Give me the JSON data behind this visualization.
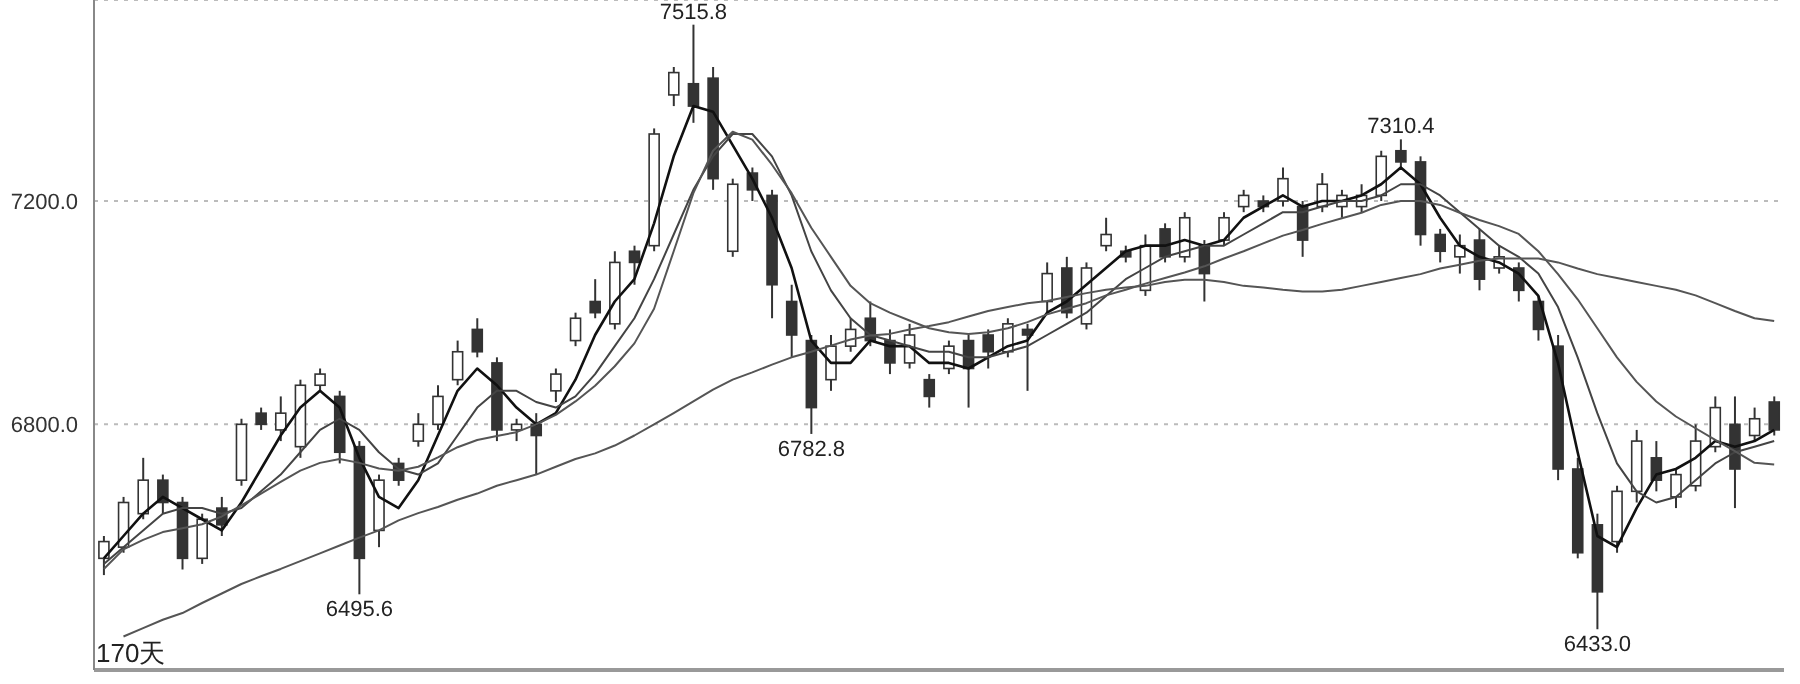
{
  "chart_data": {
    "type": "candlestick",
    "color": "#333333",
    "grid": "y",
    "tick_labels": "y",
    "ylim": [
      6360,
      7560
    ],
    "yticks": [
      {
        "value": 6800,
        "label": "6800.0"
      },
      {
        "value": 7200,
        "label": "7200.0"
      }
    ],
    "categories": [
      null,
      null,
      null,
      null,
      null,
      null,
      null,
      null,
      null,
      null,
      null,
      null,
      null,
      null,
      null,
      null,
      null,
      null,
      null,
      null,
      null,
      null,
      null,
      null,
      null,
      null,
      null,
      null,
      null,
      null,
      null,
      null,
      null,
      null,
      null,
      null,
      null,
      null,
      null,
      null,
      null,
      null,
      null,
      null,
      null,
      null,
      null,
      null,
      null,
      null,
      null,
      null,
      null,
      null,
      null,
      null,
      null,
      null,
      null,
      null,
      null,
      null,
      null,
      null,
      null,
      null,
      null,
      null,
      null,
      null,
      null,
      null,
      null,
      null,
      null,
      null,
      null,
      null,
      null,
      null,
      null,
      null,
      null,
      null,
      null,
      null
    ],
    "ohlc": [
      [
        6560,
        6600,
        6530,
        6590
      ],
      [
        6580,
        6670,
        6570,
        6660
      ],
      [
        6640,
        6740,
        6630,
        6700
      ],
      [
        6700,
        6710,
        6640,
        6660
      ],
      [
        6660,
        6670,
        6540,
        6560
      ],
      [
        6560,
        6640,
        6550,
        6630
      ],
      [
        6650,
        6670,
        6600,
        6620
      ],
      [
        6700,
        6810,
        6690,
        6800
      ],
      [
        6820,
        6830,
        6790,
        6800
      ],
      [
        6790,
        6850,
        6770,
        6820
      ],
      [
        6760,
        6880,
        6740,
        6870
      ],
      [
        6870,
        6900,
        6860,
        6890
      ],
      [
        6850,
        6860,
        6730,
        6750
      ],
      [
        6760,
        6770,
        6495.6,
        6560
      ],
      [
        6610,
        6710,
        6580,
        6700
      ],
      [
        6730,
        6740,
        6690,
        6700
      ],
      [
        6770,
        6820,
        6760,
        6800
      ],
      [
        6800,
        6870,
        6790,
        6850
      ],
      [
        6880,
        6950,
        6870,
        6930
      ],
      [
        6970,
        6990,
        6920,
        6930
      ],
      [
        6910,
        6920,
        6770,
        6790
      ],
      [
        6790,
        6810,
        6770,
        6800
      ],
      [
        6800,
        6820,
        6710,
        6780
      ],
      [
        6860,
        6900,
        6840,
        6890
      ],
      [
        6950,
        7000,
        6940,
        6990
      ],
      [
        7020,
        7060,
        6990,
        7000
      ],
      [
        6980,
        7110,
        6970,
        7090
      ],
      [
        7110,
        7120,
        7050,
        7090
      ],
      [
        7120,
        7330,
        7110,
        7320
      ],
      [
        7390,
        7440,
        7370,
        7430
      ],
      [
        7410,
        7515.8,
        7340,
        7370
      ],
      [
        7420,
        7440,
        7220,
        7240
      ],
      [
        7110,
        7240,
        7100,
        7230
      ],
      [
        7250,
        7260,
        7200,
        7220
      ],
      [
        7210,
        7220,
        6990,
        7050
      ],
      [
        7020,
        7050,
        6920,
        6960
      ],
      [
        6950,
        6960,
        6782.8,
        6830
      ],
      [
        6880,
        6960,
        6860,
        6940
      ],
      [
        6940,
        6990,
        6930,
        6970
      ],
      [
        6990,
        7020,
        6940,
        6950
      ],
      [
        6950,
        6970,
        6890,
        6910
      ],
      [
        6910,
        6980,
        6900,
        6960
      ],
      [
        6880,
        6890,
        6830,
        6850
      ],
      [
        6900,
        6950,
        6890,
        6940
      ],
      [
        6950,
        6960,
        6830,
        6900
      ],
      [
        6960,
        6970,
        6900,
        6930
      ],
      [
        6930,
        6990,
        6920,
        6980
      ],
      [
        6970,
        6980,
        6860,
        6960
      ],
      [
        7020,
        7090,
        7000,
        7070
      ],
      [
        7080,
        7100,
        6990,
        7000
      ],
      [
        6980,
        7090,
        6970,
        7080
      ],
      [
        7120,
        7170,
        7110,
        7140
      ],
      [
        7110,
        7120,
        7090,
        7100
      ],
      [
        7040,
        7140,
        7030,
        7120
      ],
      [
        7150,
        7160,
        7090,
        7100
      ],
      [
        7100,
        7180,
        7090,
        7170
      ],
      [
        7120,
        7130,
        7020,
        7070
      ],
      [
        7130,
        7180,
        7120,
        7170
      ],
      [
        7190,
        7220,
        7180,
        7210
      ],
      [
        7200,
        7210,
        7180,
        7190
      ],
      [
        7200,
        7260,
        7190,
        7240
      ],
      [
        7190,
        7200,
        7100,
        7130
      ],
      [
        7190,
        7250,
        7180,
        7230
      ],
      [
        7190,
        7220,
        7170,
        7210
      ],
      [
        7190,
        7230,
        7180,
        7210
      ],
      [
        7210,
        7290,
        7200,
        7280
      ],
      [
        7290,
        7310.4,
        7260,
        7270
      ],
      [
        7270,
        7280,
        7120,
        7140
      ],
      [
        7140,
        7150,
        7090,
        7110
      ],
      [
        7100,
        7140,
        7070,
        7120
      ],
      [
        7130,
        7150,
        7040,
        7060
      ],
      [
        7080,
        7120,
        7070,
        7100
      ],
      [
        7080,
        7090,
        7020,
        7040
      ],
      [
        7020,
        7030,
        6950,
        6970
      ],
      [
        6940,
        6960,
        6700,
        6720
      ],
      [
        6720,
        6740,
        6560,
        6570
      ],
      [
        6620,
        6640,
        6433.0,
        6500
      ],
      [
        6590,
        6690,
        6570,
        6680
      ],
      [
        6680,
        6790,
        6660,
        6770
      ],
      [
        6740,
        6770,
        6680,
        6700
      ],
      [
        6670,
        6720,
        6650,
        6710
      ],
      [
        6690,
        6800,
        6680,
        6770
      ],
      [
        6760,
        6850,
        6750,
        6830
      ],
      [
        6800,
        6850,
        6650,
        6720
      ],
      [
        6780,
        6830,
        6770,
        6810
      ],
      [
        6840,
        6850,
        6780,
        6790
      ]
    ],
    "series": [
      {
        "type": "line",
        "color": "#111111",
        "values": [
          6560,
          6600,
          6640,
          6670,
          6650,
          6630,
          6610,
          6660,
          6720,
          6780,
          6830,
          6860,
          6830,
          6740,
          6670,
          6650,
          6700,
          6780,
          6860,
          6900,
          6870,
          6830,
          6800,
          6820,
          6880,
          6960,
          7020,
          7060,
          7160,
          7280,
          7370,
          7360,
          7300,
          7240,
          7170,
          7080,
          6950,
          6910,
          6910,
          6950,
          6940,
          6940,
          6910,
          6910,
          6900,
          6920,
          6940,
          6950,
          7000,
          7020,
          7050,
          7080,
          7110,
          7120,
          7120,
          7130,
          7120,
          7130,
          7170,
          7190,
          7210,
          7190,
          7200,
          7200,
          7210,
          7230,
          7260,
          7230,
          7170,
          7120,
          7100,
          7090,
          7070,
          7030,
          6910,
          6750,
          6600,
          6580,
          6650,
          6710,
          6720,
          6740,
          6770,
          6760,
          6770,
          6790
        ]
      },
      {
        "type": "line",
        "color": "#444444",
        "values": [
          6550,
          6580,
          6610,
          6640,
          6650,
          6650,
          6640,
          6650,
          6680,
          6710,
          6750,
          6790,
          6810,
          6790,
          6750,
          6720,
          6710,
          6730,
          6780,
          6830,
          6860,
          6860,
          6840,
          6830,
          6850,
          6890,
          6940,
          6990,
          7060,
          7140,
          7220,
          7280,
          7320,
          7320,
          7280,
          7210,
          7110,
          7040,
          6990,
          6960,
          6950,
          6940,
          6930,
          6930,
          6920,
          6920,
          6930,
          6940,
          6960,
          6980,
          7000,
          7030,
          7060,
          7080,
          7100,
          7110,
          7120,
          7120,
          7140,
          7160,
          7180,
          7180,
          7190,
          7200,
          7200,
          7210,
          7230,
          7230,
          7210,
          7180,
          7150,
          7120,
          7100,
          7070,
          7010,
          6920,
          6820,
          6730,
          6680,
          6660,
          6670,
          6700,
          6730,
          6750,
          6760,
          6770
        ]
      },
      {
        "type": "line",
        "color": "#555555",
        "values": [
          6541,
          6576,
          6593,
          6607,
          6614,
          6621,
          6635,
          6655,
          6676,
          6697,
          6717,
          6731,
          6738,
          6731,
          6721,
          6717,
          6724,
          6741,
          6759,
          6772,
          6779,
          6786,
          6800,
          6817,
          6841,
          6869,
          6904,
          6945,
          7007,
          7110,
          7214,
          7290,
          7324,
          7310,
          7265,
          7214,
          7152,
          7100,
          7048,
          7017,
          7000,
          6986,
          6972,
          6965,
          6962,
          6965,
          6972,
          6983,
          6997,
          7007,
          7017,
          7031,
          7041,
          7052,
          7062,
          7072,
          7083,
          7097,
          7110,
          7124,
          7138,
          7148,
          7159,
          7169,
          7179,
          7193,
          7200,
          7200,
          7193,
          7179,
          7166,
          7155,
          7141,
          7110,
          7069,
          7024,
          6972,
          6920,
          6876,
          6841,
          6814,
          6793,
          6772,
          6752,
          6731,
          6728
        ]
      },
      {
        "type": "line",
        "color": "#555555",
        "values": [
          null,
          6420,
          6435,
          6450,
          6462,
          6480,
          6497,
          6514,
          6528,
          6541,
          6555,
          6569,
          6583,
          6597,
          6610,
          6628,
          6641,
          6652,
          6665,
          6676,
          6690,
          6700,
          6710,
          6724,
          6738,
          6748,
          6762,
          6780,
          6800,
          6820,
          6841,
          6862,
          6880,
          6893,
          6907,
          6920,
          6930,
          6941,
          6952,
          6959,
          6962,
          6970,
          6976,
          6983,
          6993,
          7003,
          7010,
          7017,
          7021,
          7028,
          7035,
          7041,
          7045,
          7048,
          7055,
          7059,
          7059,
          7055,
          7048,
          7045,
          7041,
          7038,
          7038,
          7041,
          7048,
          7055,
          7062,
          7069,
          7079,
          7086,
          7093,
          7097,
          7097,
          7097,
          7090,
          7079,
          7069,
          7062,
          7055,
          7048,
          7041,
          7031,
          7017,
          7003,
          6990,
          6985
        ]
      }
    ],
    "annotations": [
      "170天",
      {
        "text": "7515.8",
        "y": 7515.8
      },
      {
        "text": "6495.6",
        "y": 6495.6
      },
      {
        "text": "6782.8",
        "y": 6782.8
      },
      {
        "text": "7310.4",
        "y": 7310.4
      },
      {
        "text": "6433.0",
        "y": 6433.0
      }
    ]
  }
}
